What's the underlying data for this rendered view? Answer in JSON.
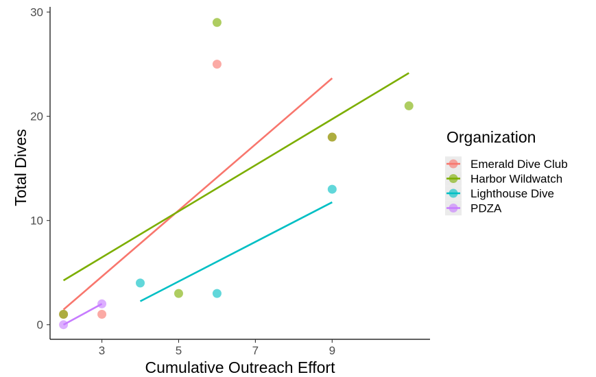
{
  "chart_data": {
    "type": "scatter",
    "xlabel": "Cumulative Outreach Effort",
    "ylabel": "Total Dives",
    "xlim": [
      1.65,
      11.55
    ],
    "ylim": [
      -1.4,
      30.5
    ],
    "xticks": [
      3,
      5,
      7,
      9
    ],
    "yticks": [
      0,
      10,
      20,
      30
    ],
    "grid": false,
    "legend": {
      "title": "Organization",
      "placement": "right"
    },
    "series": [
      {
        "name": "Emerald Dive Club",
        "color": "#F8766D",
        "points": [
          [
            2,
            1
          ],
          [
            3,
            1
          ],
          [
            6,
            25
          ],
          [
            9,
            18
          ]
        ],
        "trend": [
          [
            2,
            1.45
          ],
          [
            9,
            23.65
          ]
        ]
      },
      {
        "name": "Harbor Wildwatch",
        "color": "#7CAE00",
        "points": [
          [
            2,
            1
          ],
          [
            5,
            3
          ],
          [
            6,
            29
          ],
          [
            9,
            18
          ],
          [
            11,
            21
          ]
        ],
        "trend": [
          [
            2,
            4.25
          ],
          [
            11,
            24.15
          ]
        ]
      },
      {
        "name": "Lighthouse Dive",
        "color": "#00BFC4",
        "points": [
          [
            4,
            4
          ],
          [
            6,
            3
          ],
          [
            9,
            13
          ]
        ],
        "trend": [
          [
            4,
            2.25
          ],
          [
            9,
            11.75
          ]
        ]
      },
      {
        "name": "PDZA",
        "color": "#C77CFF",
        "points": [
          [
            2,
            0
          ],
          [
            3,
            2
          ]
        ],
        "trend": [
          [
            2,
            0
          ],
          [
            3,
            2
          ]
        ]
      }
    ]
  }
}
